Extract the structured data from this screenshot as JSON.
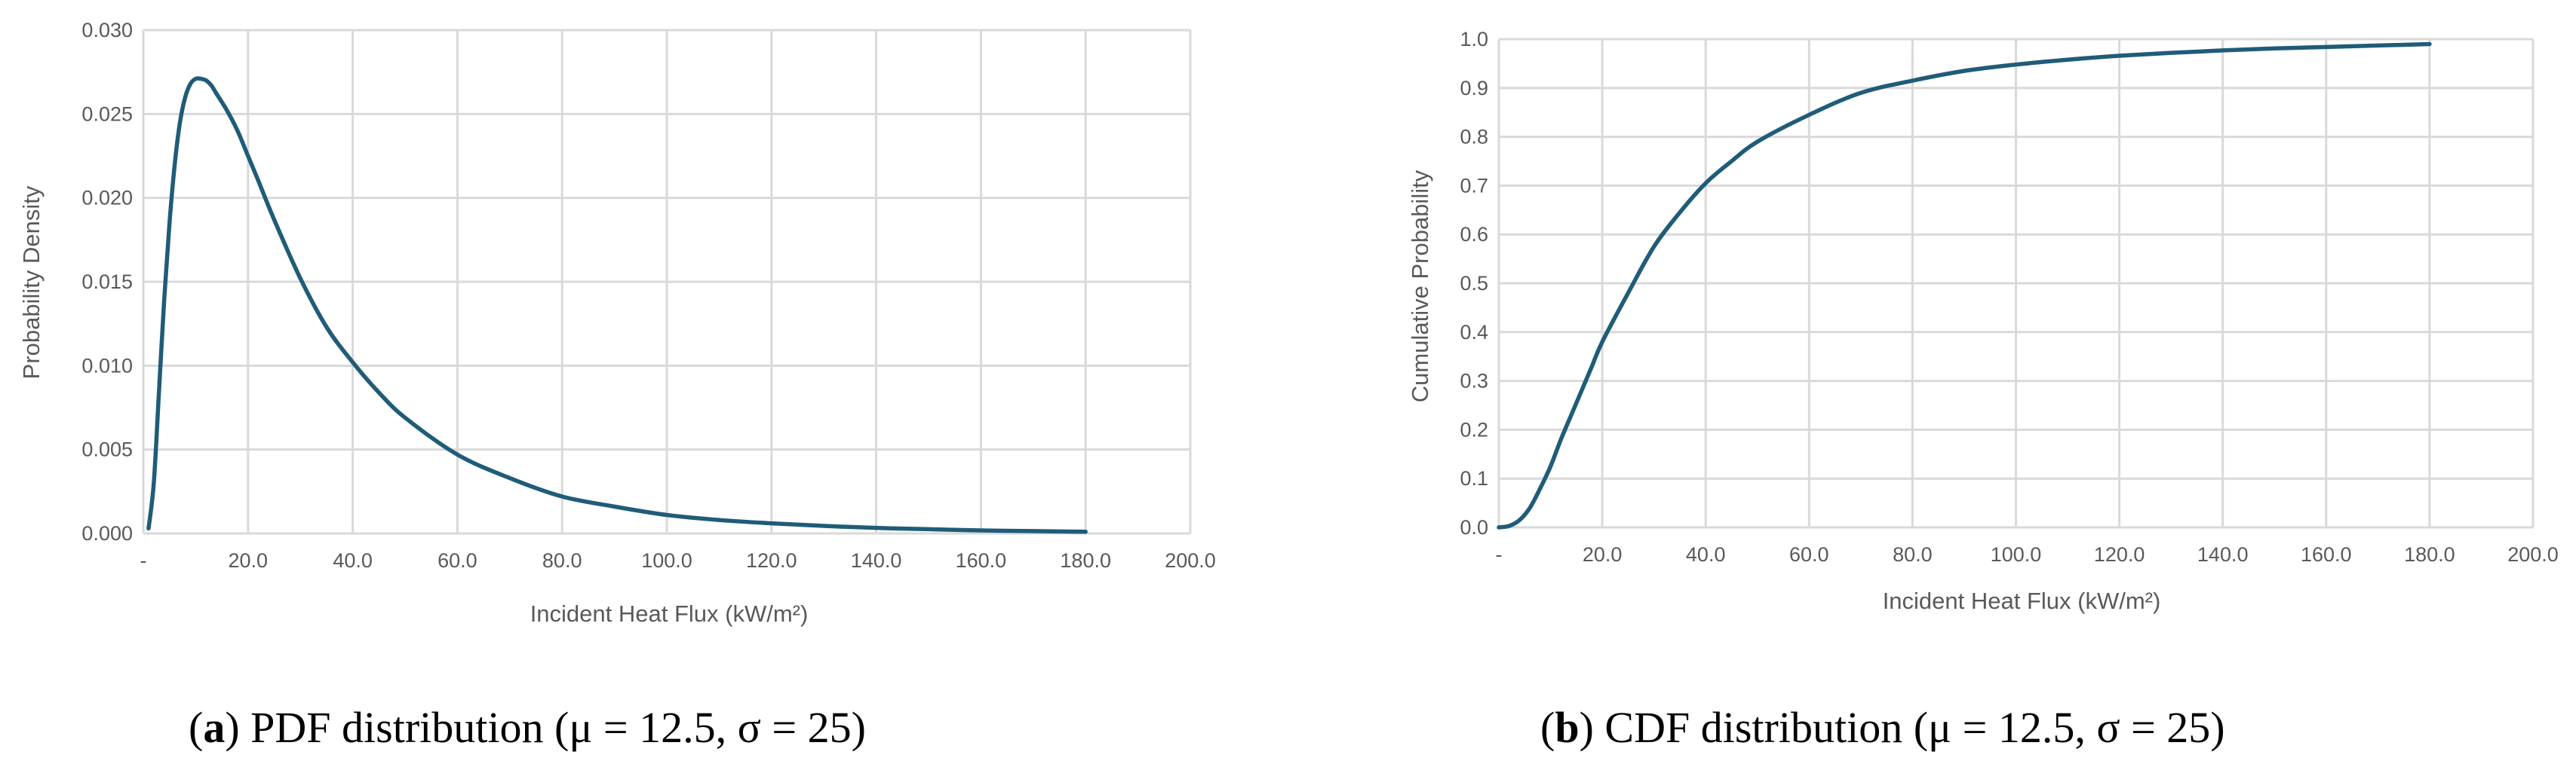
{
  "chart_data": [
    {
      "type": "line",
      "title": "",
      "xlabel": "Incident Heat Flux (kW/m²)",
      "ylabel": "Probability Density",
      "xlim": [
        0,
        200
      ],
      "ylim": [
        0,
        0.03
      ],
      "x_ticks": [
        "-",
        "20.0",
        "40.0",
        "60.0",
        "80.0",
        "100.0",
        "120.0",
        "140.0",
        "160.0",
        "180.0",
        "200.0"
      ],
      "y_ticks": [
        "0.000",
        "0.005",
        "0.010",
        "0.015",
        "0.020",
        "0.025",
        "0.030"
      ],
      "grid": true,
      "series": [
        {
          "color": "#1f5c78",
          "x": [
            1,
            2,
            3,
            4,
            5,
            6,
            7,
            8,
            9,
            10,
            11,
            12,
            13,
            14,
            16,
            18,
            20,
            22,
            25,
            30,
            35,
            40,
            45,
            50,
            60,
            70,
            80,
            90,
            100,
            110,
            120,
            130,
            140,
            150,
            160,
            170,
            180
          ],
          "y": [
            0.0003,
            0.003,
            0.0085,
            0.014,
            0.0185,
            0.022,
            0.0245,
            0.026,
            0.0268,
            0.0271,
            0.0271,
            0.027,
            0.0267,
            0.0262,
            0.0252,
            0.024,
            0.0225,
            0.021,
            0.0187,
            0.0152,
            0.0123,
            0.0102,
            0.0084,
            0.0069,
            0.0047,
            0.0033,
            0.0022,
            0.0016,
            0.0011,
            0.0008,
            0.0006,
            0.00045,
            0.00033,
            0.00025,
            0.00018,
            0.00014,
            0.0001
          ]
        }
      ]
    },
    {
      "type": "line",
      "title": "",
      "xlabel": "Incident Heat Flux (kW/m²)",
      "ylabel": "Cumulative Probability",
      "xlim": [
        0,
        200
      ],
      "ylim": [
        0,
        1.0
      ],
      "x_ticks": [
        "-",
        "20.0",
        "40.0",
        "60.0",
        "80.0",
        "100.0",
        "120.0",
        "140.0",
        "160.0",
        "180.0",
        "200.0"
      ],
      "y_ticks": [
        "0.0",
        "0.1",
        "0.2",
        "0.3",
        "0.4",
        "0.5",
        "0.6",
        "0.7",
        "0.8",
        "0.9",
        "1.0"
      ],
      "grid": true,
      "series": [
        {
          "color": "#1f5c78",
          "x": [
            0,
            2,
            4,
            6,
            8,
            10,
            12,
            14,
            16,
            18,
            20,
            25,
            30,
            35,
            40,
            45,
            50,
            60,
            70,
            80,
            90,
            100,
            110,
            120,
            130,
            140,
            150,
            160,
            170,
            180
          ],
          "y": [
            0.0,
            0.003,
            0.015,
            0.04,
            0.08,
            0.125,
            0.18,
            0.23,
            0.28,
            0.33,
            0.38,
            0.48,
            0.575,
            0.645,
            0.705,
            0.75,
            0.79,
            0.845,
            0.89,
            0.915,
            0.935,
            0.948,
            0.958,
            0.966,
            0.972,
            0.977,
            0.981,
            0.984,
            0.987,
            0.99
          ]
        }
      ]
    }
  ],
  "captions": [
    {
      "label": "a",
      "text": "PDF distribution (μ = 12.5, σ = 25)"
    },
    {
      "label": "b",
      "text": "CDF distribution (μ = 12.5, σ = 25)"
    }
  ]
}
